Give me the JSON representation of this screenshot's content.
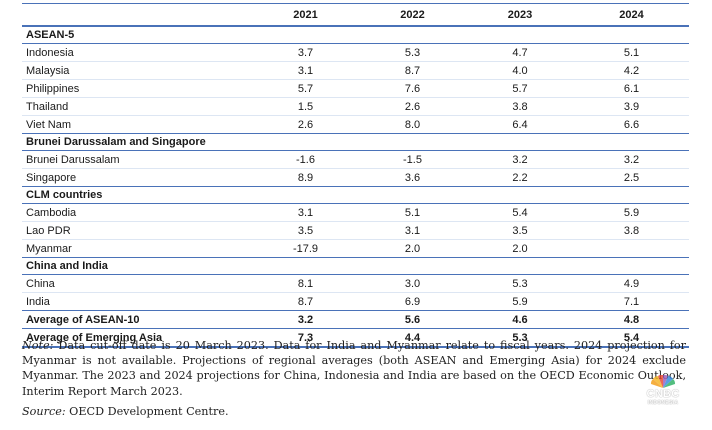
{
  "columns": [
    "2021",
    "2022",
    "2023",
    "2024"
  ],
  "groups": [
    {
      "name": "ASEAN-5",
      "rows": [
        {
          "country": "Indonesia",
          "values": [
            "3.7",
            "5.3",
            "4.7",
            "5.1"
          ]
        },
        {
          "country": "Malaysia",
          "values": [
            "3.1",
            "8.7",
            "4.0",
            "4.2"
          ]
        },
        {
          "country": "Philippines",
          "values": [
            "5.7",
            "7.6",
            "5.7",
            "6.1"
          ]
        },
        {
          "country": "Thailand",
          "values": [
            "1.5",
            "2.6",
            "3.8",
            "3.9"
          ]
        },
        {
          "country": "Viet Nam",
          "values": [
            "2.6",
            "8.0",
            "6.4",
            "6.6"
          ]
        }
      ]
    },
    {
      "name": "Brunei Darussalam and Singapore",
      "rows": [
        {
          "country": "Brunei Darussalam",
          "values": [
            "-1.6",
            "-1.5",
            "3.2",
            "3.2"
          ]
        },
        {
          "country": "Singapore",
          "values": [
            "8.9",
            "3.6",
            "2.2",
            "2.5"
          ]
        }
      ]
    },
    {
      "name": "CLM countries",
      "rows": [
        {
          "country": "Cambodia",
          "values": [
            "3.1",
            "5.1",
            "5.4",
            "5.9"
          ]
        },
        {
          "country": "Lao PDR",
          "values": [
            "3.5",
            "3.1",
            "3.5",
            "3.8"
          ]
        },
        {
          "country": "Myanmar",
          "values": [
            "-17.9",
            "2.0",
            "2.0",
            ""
          ]
        }
      ]
    },
    {
      "name": "China and India",
      "rows": [
        {
          "country": "China",
          "values": [
            "8.1",
            "3.0",
            "5.3",
            "4.9"
          ]
        },
        {
          "country": "India",
          "values": [
            "8.7",
            "6.9",
            "5.9",
            "7.1"
          ]
        }
      ]
    }
  ],
  "averages": [
    {
      "label": "Average of ASEAN-10",
      "values": [
        "3.2",
        "5.6",
        "4.6",
        "4.8"
      ]
    },
    {
      "label": "Average of Emerging Asia",
      "values": [
        "7.3",
        "4.4",
        "5.3",
        "5.4"
      ]
    }
  ],
  "note": {
    "label": "Note:",
    "text": "Data cut-off date is 20 March 2023. Data for India and Myanmar relate to fiscal years. 2024 projection for Myanmar is not available. Projections of regional averages (both ASEAN and Emerging Asia) for 2024 exclude Myanmar. The 2023 and 2024 projections for China, Indonesia and India are based on the OECD Economic Outlook, Interim Report March 2023."
  },
  "source": {
    "label": "Source:",
    "text": "OECD Development Centre."
  },
  "watermark": {
    "line1": "CNBC",
    "line2": "INDONESIA",
    "icon": "peacock-icon"
  },
  "colors": {
    "rule": "#4a72b8",
    "row_rule": "#dde6f3"
  }
}
